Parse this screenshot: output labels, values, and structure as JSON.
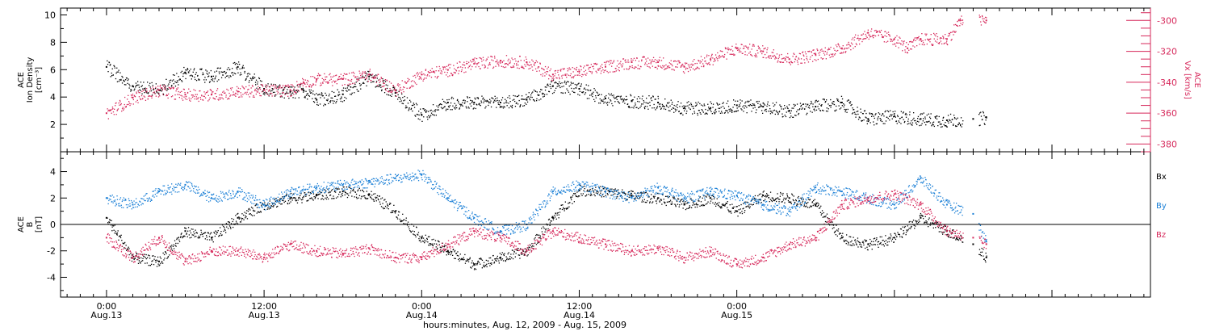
{
  "chart_data": [
    {
      "type": "scatter",
      "panel": "top",
      "left_axis": {
        "title_lines": [
          "ACE",
          "Ion Density",
          "[cm⁻³]"
        ],
        "range": [
          0,
          10.5
        ],
        "ticks": [
          "2",
          "4",
          "6",
          "8",
          "10"
        ],
        "color": "#000000"
      },
      "right_axis": {
        "title_lines": [
          "ACE",
          "Vx [km/s]"
        ],
        "range": [
          -385,
          -292
        ],
        "ticks": [
          "-300",
          "-320",
          "-340",
          "-360",
          "-380"
        ],
        "color": "#d6275a"
      },
      "series": [
        {
          "axis": "left",
          "color": "#000000",
          "x": [
            0,
            2,
            4,
            6,
            8,
            10,
            12,
            14,
            15,
            16,
            18,
            20,
            22,
            24,
            26,
            28,
            30,
            32,
            34,
            36,
            38,
            40,
            42,
            44,
            46,
            48,
            50,
            52,
            54,
            56,
            58,
            60,
            62,
            64,
            66,
            67
          ],
          "y": [
            6.2,
            4.8,
            4.5,
            5.8,
            5.5,
            6.2,
            4.6,
            4.4,
            4.5,
            3.8,
            4.2,
            5.5,
            4.3,
            2.7,
            3.6,
            3.6,
            3.6,
            3.8,
            4.8,
            4.6,
            3.9,
            3.7,
            3.6,
            3.2,
            3.2,
            3.4,
            3.3,
            3.0,
            3.3,
            3.6,
            2.4,
            2.6,
            2.4,
            2.3,
            2.4,
            2.5
          ]
        },
        {
          "axis": "right",
          "color": "#d6275a",
          "x": [
            0,
            2,
            4,
            6,
            8,
            10,
            12,
            14,
            15,
            16,
            18,
            20,
            22,
            24,
            26,
            28,
            30,
            32,
            34,
            36,
            38,
            40,
            42,
            44,
            46,
            48,
            50,
            52,
            54,
            56,
            58,
            60,
            61,
            62,
            64,
            65,
            67
          ],
          "y": [
            -360,
            -350,
            -345,
            -348,
            -348,
            -346,
            -345,
            -345,
            -340,
            -338,
            -338,
            -335,
            -345,
            -335,
            -332,
            -328,
            -326,
            -327,
            -335,
            -333,
            -330,
            -327,
            -327,
            -330,
            -325,
            -318,
            -320,
            -325,
            -322,
            -318,
            -308,
            -312,
            -318,
            -312,
            -312,
            -300,
            -300
          ]
        }
      ]
    },
    {
      "type": "scatter",
      "panel": "bottom",
      "left_axis": {
        "title_lines": [
          "ACE",
          "B",
          "[nT]"
        ],
        "range": [
          -5.5,
          5.5
        ],
        "ticks": [
          "4",
          "2",
          "0",
          "-2",
          "-4"
        ],
        "color": "#000000"
      },
      "legend": [
        {
          "label": "Bx",
          "color": "#000000"
        },
        {
          "label": "By",
          "color": "#1a7fd6"
        },
        {
          "label": "Bz",
          "color": "#d6275a"
        }
      ],
      "series": [
        {
          "name": "Bx",
          "color": "#000000",
          "x": [
            0,
            2,
            4,
            6,
            8,
            10,
            12,
            14,
            16,
            18,
            20,
            22,
            24,
            26,
            28,
            30,
            32,
            34,
            36,
            38,
            40,
            42,
            44,
            46,
            48,
            50,
            52,
            54,
            56,
            58,
            60,
            62,
            64,
            66,
            67
          ],
          "y": [
            0.5,
            -2.5,
            -2.8,
            -0.5,
            -1.0,
            0.5,
            1.5,
            2.0,
            2.2,
            2.5,
            2.3,
            1.0,
            -1.0,
            -2.0,
            -3.0,
            -2.5,
            -2.0,
            0.5,
            2.6,
            2.5,
            2.2,
            2.0,
            1.5,
            2.0,
            1.0,
            2.2,
            2.0,
            1.5,
            -1.0,
            -1.5,
            -1.0,
            0.5,
            -0.5,
            -1.5,
            -2.5
          ]
        },
        {
          "name": "By",
          "color": "#1a7fd6",
          "x": [
            0,
            2,
            4,
            6,
            8,
            10,
            12,
            14,
            16,
            18,
            20,
            22,
            24,
            26,
            28,
            30,
            32,
            34,
            36,
            38,
            40,
            42,
            44,
            46,
            48,
            50,
            52,
            54,
            56,
            58,
            60,
            62,
            64,
            66,
            67
          ],
          "y": [
            2.0,
            1.5,
            2.5,
            3.0,
            2.0,
            2.5,
            1.5,
            2.5,
            2.8,
            3.0,
            3.2,
            3.5,
            3.8,
            2.0,
            0.5,
            -0.5,
            0.0,
            2.5,
            3.0,
            2.5,
            2.0,
            2.8,
            2.0,
            2.5,
            2.2,
            1.5,
            1.0,
            2.8,
            2.5,
            2.0,
            1.5,
            3.5,
            1.5,
            0.8,
            -1.3
          ]
        },
        {
          "name": "Bz",
          "color": "#d6275a",
          "x": [
            0,
            2,
            4,
            6,
            8,
            10,
            12,
            14,
            16,
            18,
            20,
            22,
            24,
            26,
            28,
            30,
            32,
            34,
            36,
            38,
            40,
            42,
            44,
            46,
            48,
            50,
            52,
            54,
            56,
            58,
            60,
            62,
            64,
            66,
            67
          ],
          "y": [
            -1.0,
            -2.5,
            -1.0,
            -2.8,
            -2.0,
            -2.0,
            -2.5,
            -1.5,
            -2.0,
            -2.2,
            -1.8,
            -2.5,
            -2.5,
            -1.5,
            -0.5,
            -1.0,
            -2.0,
            -0.5,
            -1.0,
            -1.5,
            -2.0,
            -1.8,
            -2.5,
            -2.0,
            -3.0,
            -2.5,
            -1.5,
            -1.0,
            1.5,
            2.0,
            2.3,
            1.5,
            -0.5,
            -1.0,
            -1.5
          ]
        }
      ]
    }
  ],
  "x_axis": {
    "range_hours": [
      -3.5,
      79.5
    ],
    "ticks": [
      {
        "hour": 0,
        "time": "0:00",
        "date": "Aug.13"
      },
      {
        "hour": 12,
        "time": "12:00",
        "date": "Aug.13"
      },
      {
        "hour": 24,
        "time": "0:00",
        "date": "Aug.14"
      },
      {
        "hour": 36,
        "time": "12:00",
        "date": "Aug.14"
      },
      {
        "hour": 48,
        "time": "0:00",
        "date": "Aug.15"
      }
    ],
    "title": "hours:minutes, Aug. 12, 2009 - Aug. 15, 2009"
  }
}
